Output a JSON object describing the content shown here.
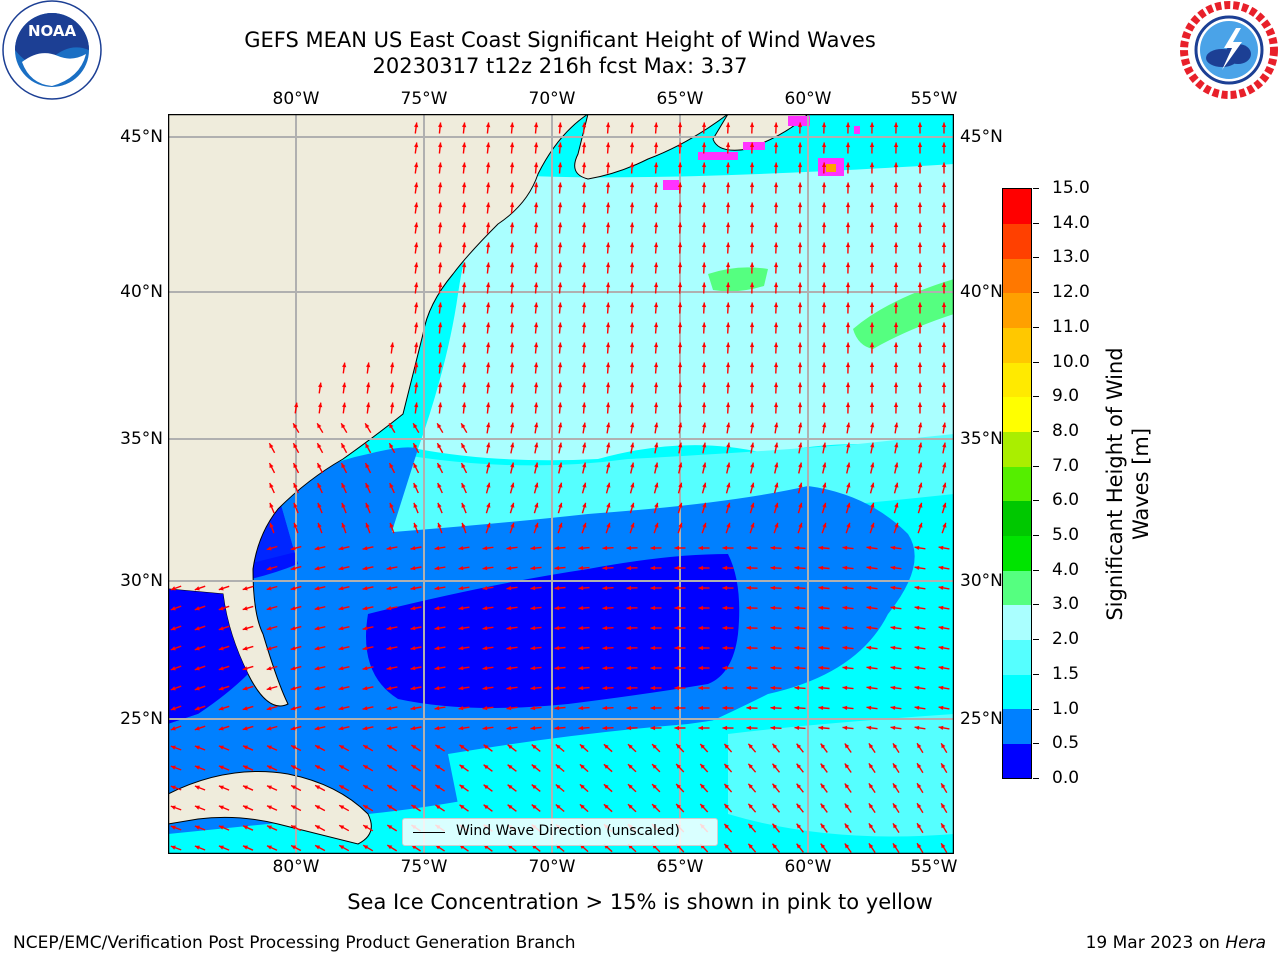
{
  "title": {
    "line1": "GEFS MEAN US East Coast Significant Height of Wind Waves",
    "line2": "20230317 t12z 216h fcst   Max: 3.37"
  },
  "logos": {
    "noaa": {
      "text": "NOAA",
      "ring_top": "NATIONAL OCEANIC AND ATMOSPHERIC ADMINISTRATION",
      "ring_bottom": "U.S. DEPARTMENT OF COMMERCE"
    },
    "nws": {
      "ring": "NATIONAL WEATHER SERVICE"
    }
  },
  "map": {
    "lon_labels": [
      "80°W",
      "75°W",
      "70°W",
      "65°W",
      "60°W",
      "55°W"
    ],
    "lat_labels": [
      "45°N",
      "40°N",
      "35°N",
      "30°N",
      "25°N"
    ],
    "legend": "Wind Wave Direction (unscaled)",
    "colors": {
      "land": "#efecdc",
      "grid": "#b0b0b0",
      "arrow": "#ff0000",
      "ice_pink": "#ff33ff"
    }
  },
  "colorbar": {
    "label": "Significant Height of Wind Waves [m]",
    "title_line1": "Significant Height of Wind",
    "title_line2": "Waves [m]",
    "ticks": [
      "0.0",
      "0.5",
      "1.0",
      "1.5",
      "2.0",
      "3.0",
      "4.0",
      "5.0",
      "6.0",
      "7.0",
      "8.0",
      "9.0",
      "10.0",
      "11.0",
      "12.0",
      "13.0",
      "14.0",
      "15.0"
    ],
    "colors": [
      "#0000ff",
      "#0080ff",
      "#00ffff",
      "#55ffff",
      "#aaffff",
      "#55ff80",
      "#00e400",
      "#00c800",
      "#55ee00",
      "#aaee00",
      "#ffff00",
      "#ffea00",
      "#ffc800",
      "#ffa000",
      "#ff7800",
      "#ff4000",
      "#ff0000"
    ]
  },
  "footer": {
    "note": "Sea Ice Concentration > 15% is shown in pink to yellow",
    "left": "NCEP/EMC/Verification Post Processing Product Generation Branch",
    "right_date": "19 Mar 2023 on ",
    "right_host": "Hera"
  }
}
